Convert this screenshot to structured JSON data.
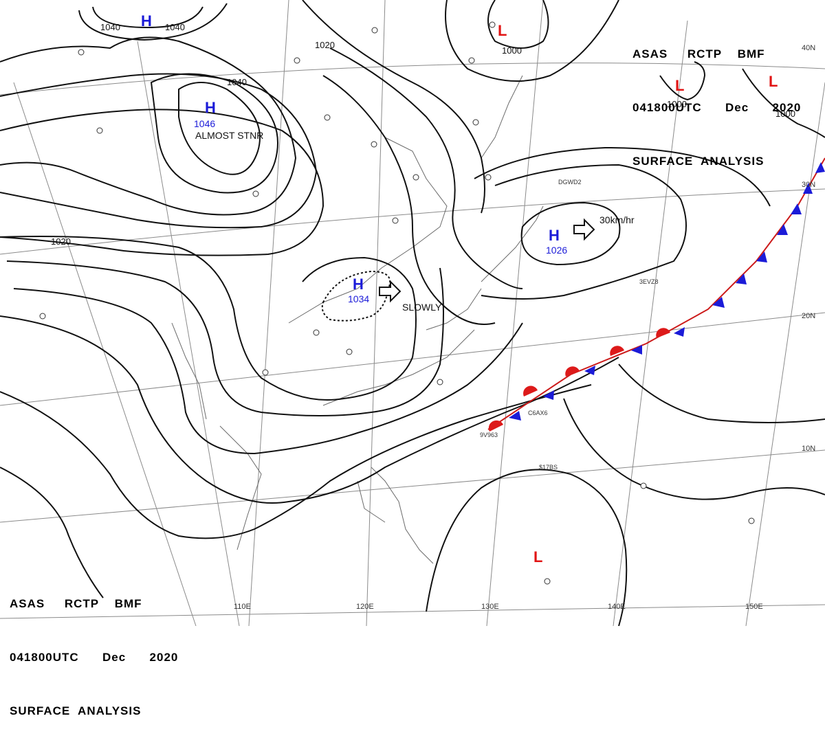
{
  "header": {
    "line1": "ASAS     RCTP    BMF",
    "line2": "041800UTC      Dec      2020",
    "line3": "SURFACE  ANALYSIS"
  },
  "colors": {
    "high": "#1b1bd8",
    "low": "#e11414",
    "isobar": "#111111",
    "grid": "#8a8a8a"
  },
  "pressure_centers": [
    {
      "type": "H",
      "value": "1040",
      "label": ""
    },
    {
      "type": "H",
      "value": "1046",
      "label": "ALMOST STNR"
    },
    {
      "type": "H",
      "value": "1034",
      "label": "SLOWLY"
    },
    {
      "type": "H",
      "value": "1026",
      "label": "30km/hr"
    },
    {
      "type": "L",
      "value": "",
      "label": ""
    },
    {
      "type": "L",
      "value": "",
      "label": ""
    },
    {
      "type": "L",
      "value": "",
      "label": ""
    },
    {
      "type": "L",
      "value": "",
      "label": ""
    }
  ],
  "isobar_labels": [
    "1040",
    "1040",
    "1040",
    "1020",
    "1000",
    "1000",
    "1000",
    "1020"
  ],
  "grid_labels": {
    "longitudes": [
      "110E",
      "120E",
      "130E",
      "140E",
      "150E"
    ],
    "latitudes": [
      "40N",
      "30N",
      "20N",
      "10N"
    ]
  },
  "ship_ids": [
    "DGWD2",
    "3EVZ8",
    "C6AX6",
    "9V963",
    "$17BS"
  ]
}
